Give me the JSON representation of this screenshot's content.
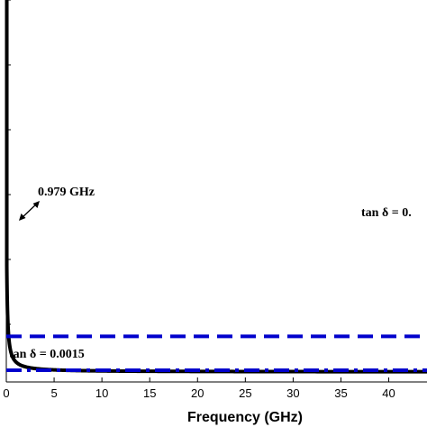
{
  "chart_data": {
    "type": "line",
    "xlabel": "Frequency (GHz)",
    "ylabel": "",
    "xlim": [
      0,
      44
    ],
    "x_ticks": [
      "0",
      "5",
      "10",
      "15",
      "20",
      "25",
      "30",
      "35",
      "40"
    ],
    "grid": false,
    "series": [
      {
        "color": "#000000",
        "style": "solid",
        "x": [
          0.05,
          0.1,
          0.2,
          0.3,
          0.5,
          0.7,
          0.979,
          1.5,
          2,
          3,
          4,
          5,
          7,
          10,
          15,
          20,
          25,
          30,
          35,
          40,
          44
        ],
        "y": [
          17.6,
          9.59,
          5.49,
          4.12,
          2.98,
          2.49,
          2.15,
          1.84,
          1.66,
          1.48,
          1.37,
          1.29,
          1.18,
          1.07,
          0.96,
          0.88,
          0.83,
          0.79,
          0.76,
          0.73,
          0.7
        ]
      },
      {
        "color": "#0000cc",
        "style": "dashed",
        "x": [
          0,
          44
        ],
        "y": [
          2.15,
          2.15
        ]
      },
      {
        "color": "#0000cc",
        "style": "dashdot",
        "x": [
          0,
          44
        ],
        "y": [
          0.55,
          0.55
        ]
      }
    ],
    "annotations": {
      "crossing": "0.979 GHz",
      "tan_upper": "tan δ = 0.",
      "tan_lower": "tan δ = 0.0015"
    }
  }
}
